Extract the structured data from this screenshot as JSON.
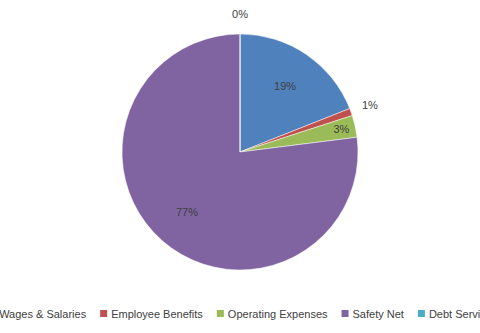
{
  "chart_data": {
    "type": "pie",
    "categories": [
      "Wages & Salaries",
      "Employee Benefits",
      "Operating Expenses",
      "Safety Net",
      "Debt Service"
    ],
    "values": [
      19,
      1,
      3,
      77,
      0
    ],
    "value_labels": [
      "19%",
      "1%",
      "3%",
      "77%",
      "0%"
    ],
    "colors": [
      "#4f81bd",
      "#c0504d",
      "#9bbb59",
      "#8064a2",
      "#4bacc6"
    ],
    "data_labels": true,
    "legend": "bottom"
  }
}
